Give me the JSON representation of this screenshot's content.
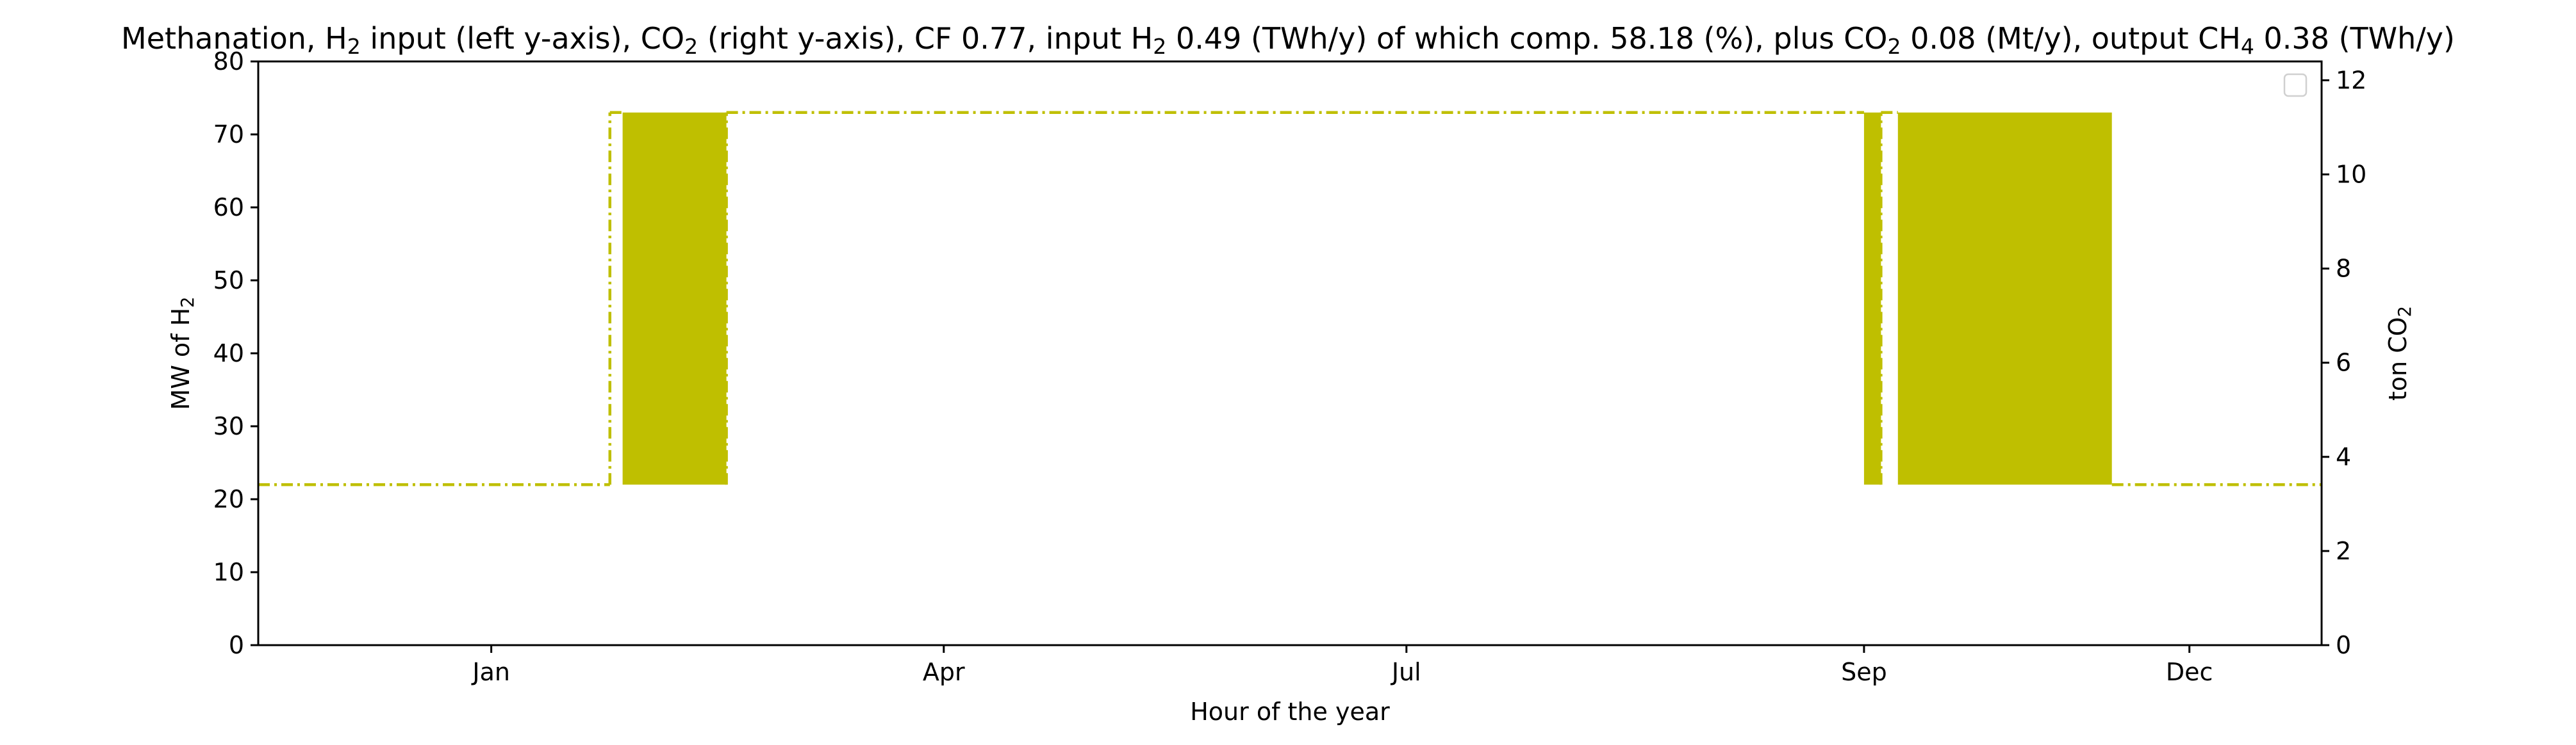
{
  "chart_data": {
    "type": "line",
    "title": {
      "parts": [
        {
          "t": "Methanation, H",
          "sub": false
        },
        {
          "t": "2",
          "sub": true
        },
        {
          "t": " input (left y-axis), CO",
          "sub": false
        },
        {
          "t": "2",
          "sub": true
        },
        {
          "t": " (right y-axis), CF 0.77, input H",
          "sub": false
        },
        {
          "t": "2",
          "sub": true
        },
        {
          "t": " 0.49 (TWh/y) of which comp. 58.18 (%), plus CO",
          "sub": false
        },
        {
          "t": "2",
          "sub": true
        },
        {
          "t": " 0.08 (Mt/y), output CH",
          "sub": false
        },
        {
          "t": "4",
          "sub": true
        },
        {
          "t": " 0.38 (TWh/y)",
          "sub": false
        }
      ]
    },
    "xlabel": "Hour of the year",
    "ylabel_left": {
      "parts": [
        {
          "t": "MW of H",
          "sub": false
        },
        {
          "t": "2",
          "sub": true
        }
      ]
    },
    "ylabel_right": {
      "parts": [
        {
          "t": "ton CO",
          "sub": false
        },
        {
          "t": "2",
          "sub": true
        }
      ]
    },
    "x_range_hours": [
      -1100,
      8640
    ],
    "y_left_range": [
      0,
      80
    ],
    "y_right_range": [
      0,
      12.4
    ],
    "y_left_ticks": [
      0,
      10,
      20,
      30,
      40,
      50,
      60,
      70,
      80
    ],
    "y_right_ticks": [
      0,
      2,
      4,
      6,
      8,
      10,
      12
    ],
    "x_ticks": [
      {
        "label": "Jan",
        "hour": 0
      },
      {
        "label": "Apr",
        "hour": 2136
      },
      {
        "label": "Jul",
        "hour": 4320
      },
      {
        "label": "Sep",
        "hour": 6480
      },
      {
        "label": "Dec",
        "hour": 8016
      }
    ],
    "grid": false,
    "legend": {
      "placement": "top-right",
      "entries": []
    },
    "series": [
      {
        "color": "#bfbf00",
        "style": "dash-dot",
        "description": "H2 input, hourly",
        "y_low": 22,
        "y_high": 73,
        "segments": [
          {
            "from": -1100,
            "to": 560,
            "mode": "constant",
            "value": 22
          },
          {
            "from": 560,
            "to": 620,
            "mode": "constant",
            "value": 73
          },
          {
            "from": 620,
            "to": 1110,
            "mode": "oscillating"
          },
          {
            "from": 1110,
            "to": 6480,
            "mode": "constant",
            "value": 73
          },
          {
            "from": 6480,
            "to": 6560,
            "mode": "oscillating"
          },
          {
            "from": 6560,
            "to": 6640,
            "mode": "constant",
            "value": 73
          },
          {
            "from": 6640,
            "to": 7650,
            "mode": "oscillating"
          },
          {
            "from": 7650,
            "to": 8640,
            "mode": "constant",
            "value": 22
          }
        ]
      }
    ]
  }
}
